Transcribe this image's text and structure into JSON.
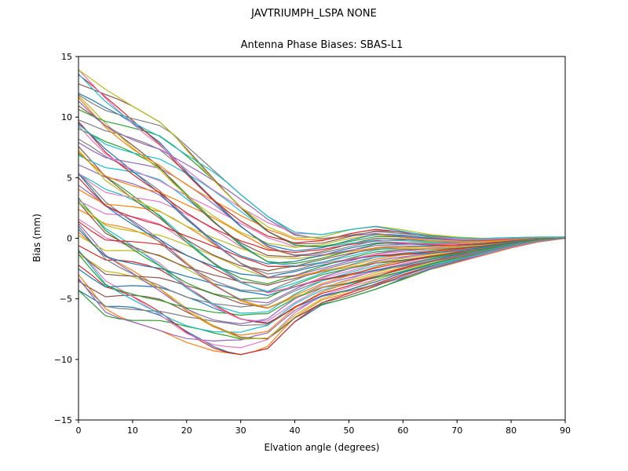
{
  "figure": {
    "suptitle": "JAVTRIUMPH_LSPA NONE",
    "title": "Antenna Phase Biases: SBAS-L1",
    "xlabel": "Elvation angle (degrees)",
    "ylabel": "Bias (mm)"
  },
  "chart_data": {
    "type": "line",
    "suptitle": "JAVTRIUMPH_LSPA NONE",
    "title": "Antenna Phase Biases: SBAS-L1",
    "xlabel": "Elvation angle (degrees)",
    "ylabel": "Bias (mm)",
    "xlim": [
      0,
      90
    ],
    "ylim": [
      -15,
      15
    ],
    "x_ticks": [
      0,
      10,
      20,
      30,
      40,
      50,
      60,
      70,
      80,
      90
    ],
    "y_ticks": [
      -15,
      -10,
      -5,
      0,
      5,
      10,
      15
    ],
    "grid": false,
    "legend": "none",
    "description": "Ensemble of ~60 unlabeled antenna phase bias curves (one per satellite/channel), matplotlib default color cycle. Curves fan out at low elevation (about -4.5 to +14 mm at 0 deg), lower curves dip to about -9.5 mm near 30 deg elevation, the bundle narrows to roughly -5..+1 mm around 50-55 deg with a small positive bump near +1 mm, and all curves converge to 0 mm at 90 deg.",
    "x": [
      0,
      5,
      10,
      15,
      20,
      25,
      30,
      35,
      40,
      45,
      50,
      55,
      60,
      65,
      70,
      75,
      80,
      85,
      90
    ],
    "envelope_top": [
      13.9,
      12.3,
      10.9,
      9.6,
      7.6,
      5.6,
      3.6,
      1.8,
      0.5,
      0.3,
      0.7,
      1.0,
      0.7,
      0.3,
      0.1,
      0.0,
      0.05,
      0.1,
      0.1
    ],
    "envelope_bottom": [
      -4.3,
      -6.4,
      -6.9,
      -7.6,
      -8.6,
      -9.3,
      -9.6,
      -9.1,
      -6.9,
      -5.5,
      -4.9,
      -4.2,
      -3.4,
      -2.6,
      -2.0,
      -1.4,
      -0.8,
      -0.3,
      0.0
    ],
    "num_lines": 60,
    "line_colors": [
      "#1f77b4",
      "#ff7f0e",
      "#2ca02c",
      "#d62728",
      "#9467bd",
      "#8c564b",
      "#e377c2",
      "#7f7f7f",
      "#bcbd22",
      "#17becf"
    ],
    "weave": {
      "blend_amplitude": 0.08,
      "phase_step": 2.39996,
      "period_degrees": 9,
      "sample_step_degrees": 2.5
    }
  }
}
